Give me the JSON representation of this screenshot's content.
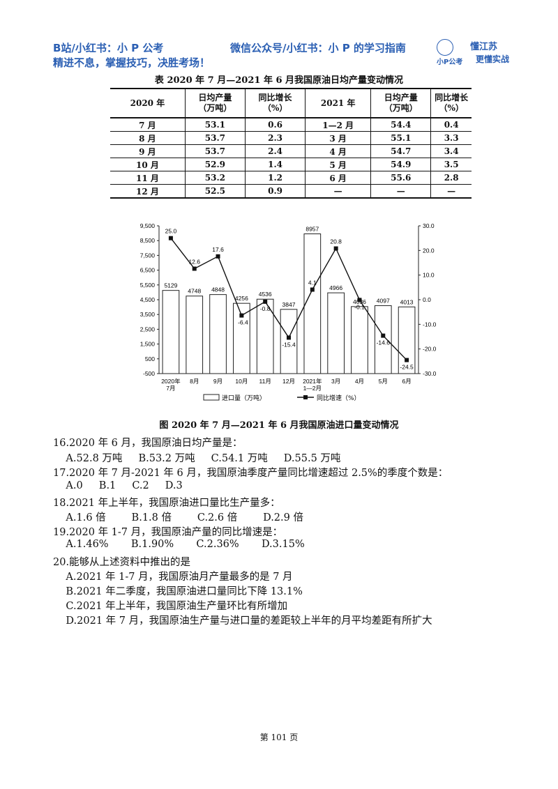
{
  "header": {
    "line1_left": "B站/小红书：小 P 公考",
    "line1_right": "微信公众号/小红书：小 P 的学习指南",
    "line2": "精进不息，掌握技巧，决胜考场！",
    "logo_top": "懂江苏",
    "logo_bottom": "更懂实战",
    "logo_name": "小P公考"
  },
  "table": {
    "title": "表 2020 年 7 月—2021 年 6 月我国原油日均产量变动情况",
    "headers": [
      "2020 年",
      "日均产量\n（万吨）",
      "同比增长\n（%）",
      "2021 年",
      "日均产量\n（万吨）",
      "同比增长\n（%）"
    ],
    "rows": [
      [
        "7 月",
        "53.1",
        "0.6",
        "1—2 月",
        "54.4",
        "0.4"
      ],
      [
        "8 月",
        "53.7",
        "2.3",
        "3 月",
        "55.1",
        "3.3"
      ],
      [
        "9 月",
        "53.7",
        "2.4",
        "4 月",
        "54.7",
        "3.4"
      ],
      [
        "10 月",
        "52.9",
        "1.4",
        "5 月",
        "54.9",
        "3.5"
      ],
      [
        "11 月",
        "53.2",
        "1.2",
        "6 月",
        "55.6",
        "2.8"
      ],
      [
        "12 月",
        "52.5",
        "0.9",
        "—",
        "—",
        "—"
      ]
    ]
  },
  "chart_data": {
    "type": "bar",
    "title": "图 2020 年 7 月—2021 年 6 月我国原油进口量变动情况",
    "categories": [
      "2020年\n7月",
      "8月",
      "9月",
      "10月",
      "11月",
      "12月",
      "2021年\n1—2月",
      "3月",
      "4月",
      "5月",
      "6月"
    ],
    "series": [
      {
        "name": "进口量（万吨）",
        "type": "bar",
        "axis": "left",
        "values": [
          5129,
          4748,
          4848,
          4256,
          4536,
          3847,
          8957,
          4966,
          4036,
          4097,
          4013
        ]
      },
      {
        "name": "同比增速（%）",
        "type": "line",
        "axis": "right",
        "values": [
          25.0,
          12.6,
          17.6,
          -6.4,
          -0.8,
          -15.4,
          4.1,
          20.8,
          -0.1,
          -14.6,
          -24.5
        ]
      }
    ],
    "left_ticks": [
      "9,500",
      "8,500",
      "7,500",
      "6,500",
      "5,500",
      "4,500",
      "3,500",
      "2,500",
      "1,500",
      "500",
      "-500"
    ],
    "right_ticks": [
      "30.0",
      "20.0",
      "10.0",
      "0.0",
      "-10.0",
      "-20.0",
      "-30.0"
    ],
    "ylim_left": [
      -500,
      9500
    ],
    "ylim_right": [
      -30,
      30
    ],
    "legend": [
      "进口量（万吨）",
      "同比增速（%）"
    ],
    "legend_position": "bottom"
  },
  "questions": [
    {
      "q": "16.2020 年 6 月，我国原油日均产量是：",
      "opts": "    A.52.8 万吨     B.53.2 万吨     C.54.1 万吨     D.55.5 万吨"
    },
    {
      "q": "17.2020 年 7 月-2021 年 6 月，我国原油季度产量同比增速超过 2.5%的季度个数是：",
      "opts": "    A.0     B.1     C.2     D.3"
    },
    {
      "q": "18.2021 年上半年，我国原油进口量比生产量多：",
      "opts": "    A.1.6 倍        B.1.8 倍        C.2.6 倍        D.2.9 倍"
    },
    {
      "q": "19.2020 年 1-7 月，我国原油产量的同比增速是：",
      "opts": "    A.1.46%       B.1.90%       C.2.36%       D.3.15%"
    }
  ],
  "q20": {
    "q": "20.能够从上述资料中推出的是",
    "a": "    A.2021 年 1-7 月，我国原油月产量最多的是 7 月",
    "b": "    B.2021 年二季度，我国原油进口量同比下降 13.1%",
    "c": "    C.2021 年上半年，我国原油生产量环比有所增加",
    "d": "    D.2021 年 7 月，我国原油生产量与进口量的差距较上半年的月平均差距有所扩大"
  },
  "page": "第 101 页"
}
